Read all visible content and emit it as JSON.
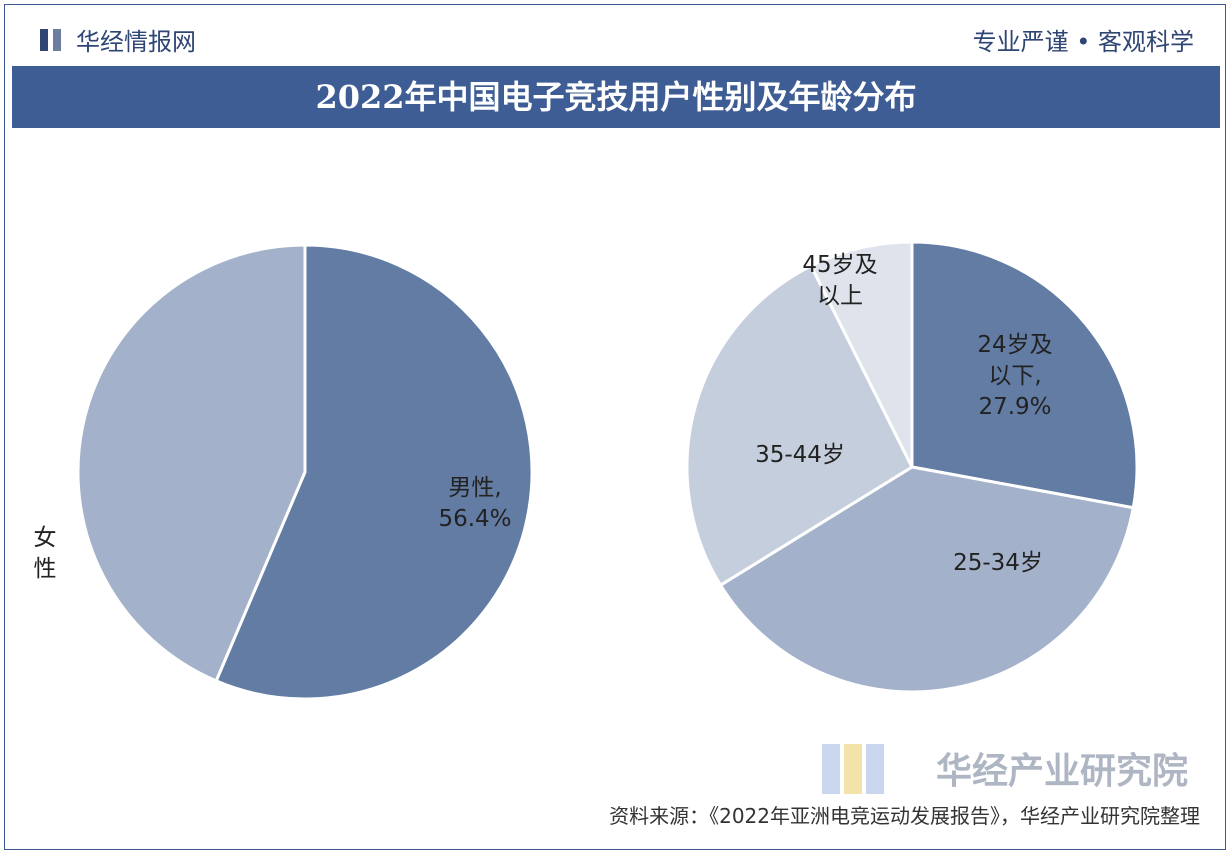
{
  "header": {
    "brand": "华经情报网",
    "slogan": "专业严谨 • 客观科学"
  },
  "title": "2022年中国电子竞技用户性别及年龄分布",
  "footer": {
    "source": "资料来源：《2022年亚洲电竞运动发展报告》，华经产业研究院整理",
    "watermark": "华经产业研究院"
  },
  "colors": {
    "dark": "#637ca3",
    "medium": "#a3b1ca",
    "light": "#c5cedd",
    "lightest": "#dfe4ec",
    "title_bg": "#3f5d95"
  },
  "chart_data": [
    {
      "type": "pie",
      "slices": [
        {
          "label": "男性",
          "value": 56.4,
          "value_label": "56.4%",
          "color": "#637ca3"
        },
        {
          "label": "女性",
          "value": 43.6,
          "value_label": "",
          "color": "#a3b1ca"
        }
      ]
    },
    {
      "type": "pie",
      "slices": [
        {
          "label": "24岁及以下",
          "value": 27.9,
          "value_label": "27.9%",
          "color": "#637ca3"
        },
        {
          "label": "25-34岁",
          "value": 38.3,
          "value_label": "",
          "color": "#a3b1ca"
        },
        {
          "label": "35-44岁",
          "value": 26.4,
          "value_label": "",
          "color": "#c5cedd"
        },
        {
          "label": "45岁及以上",
          "value": 7.4,
          "value_label": "",
          "color": "#dfe4ec"
        }
      ]
    }
  ]
}
